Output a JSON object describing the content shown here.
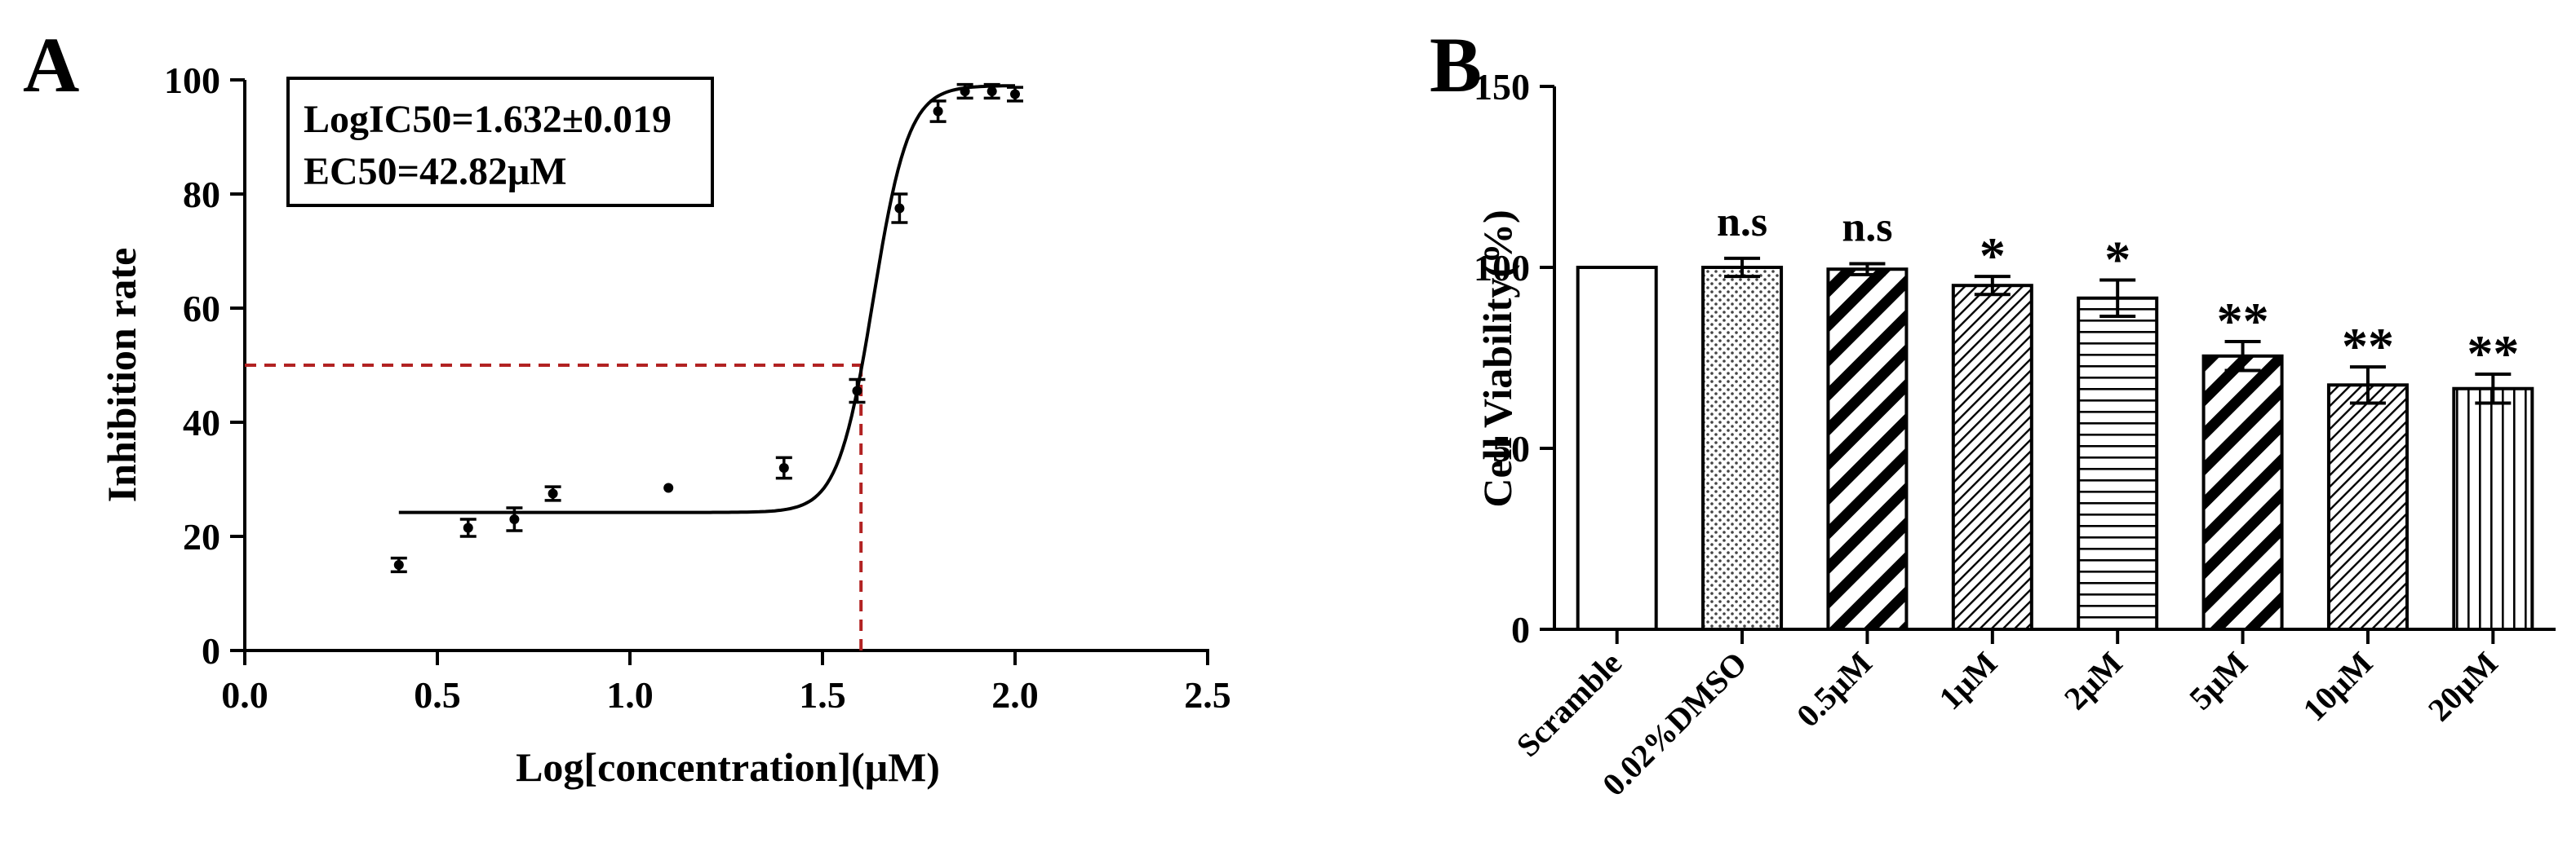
{
  "chart_data": [
    {
      "panel": "A",
      "type": "scatter",
      "title": "",
      "xlabel": "Log[concentration](μM)",
      "ylabel": "Inhibition rate",
      "xlim": [
        0,
        2.5
      ],
      "ylim": [
        0,
        100
      ],
      "xticks": [
        "0.0",
        "0.5",
        "1.0",
        "1.5",
        "2.0",
        "2.5"
      ],
      "yticks": [
        "0",
        "20",
        "40",
        "60",
        "80",
        "100"
      ],
      "points": [
        {
          "x": 0.4,
          "y": 15.0,
          "err": 1.2
        },
        {
          "x": 0.58,
          "y": 21.5,
          "err": 1.5
        },
        {
          "x": 0.7,
          "y": 23.0,
          "err": 2.0
        },
        {
          "x": 0.8,
          "y": 27.5,
          "err": 1.2
        },
        {
          "x": 1.1,
          "y": 28.5,
          "err": 0
        },
        {
          "x": 1.4,
          "y": 32.0,
          "err": 1.8
        },
        {
          "x": 1.59,
          "y": 45.5,
          "err": 2.0
        },
        {
          "x": 1.7,
          "y": 77.5,
          "err": 2.5
        },
        {
          "x": 1.8,
          "y": 94.5,
          "err": 1.8
        },
        {
          "x": 1.87,
          "y": 98.0,
          "err": 1.2
        },
        {
          "x": 1.94,
          "y": 98.0,
          "err": 1.2
        },
        {
          "x": 2.0,
          "y": 97.5,
          "err": 1.2
        }
      ],
      "fit": {
        "bottom": 24.2,
        "top": 99.0,
        "logIC50": 1.632,
        "hill": 9.5,
        "x_start": 0.4,
        "x_end": 2.0
      },
      "reference_lines": {
        "y": 50,
        "x": 1.6
      },
      "annotations": [
        "LogIC50=1.632±0.019",
        "EC50=42.82μM"
      ]
    },
    {
      "panel": "B",
      "type": "bar",
      "title": "",
      "xlabel": "",
      "ylabel": "Cell  Viability(%)",
      "ylim": [
        0,
        150
      ],
      "yticks": [
        "0",
        "50",
        "100",
        "150"
      ],
      "categories": [
        "Scramble",
        "0.02%DMSO",
        "0.5μM",
        "1μM",
        "2μM",
        "5μM",
        "10μM",
        "20μM"
      ],
      "values": [
        100,
        100,
        99.5,
        95,
        91.5,
        75.5,
        67.5,
        66.5
      ],
      "errors": [
        0,
        2.5,
        1.5,
        2.5,
        5,
        4,
        5,
        4
      ],
      "patterns": [
        "none",
        "dots",
        "diag-thick",
        "diag-thin",
        "horizontal",
        "diag-thick",
        "diag-thin",
        "vertical"
      ],
      "significance": [
        "",
        "n.s",
        "n.s",
        "*",
        "*",
        "**",
        "**",
        "**"
      ]
    }
  ],
  "colors": {
    "axis": "#000000",
    "fit_line": "#000000",
    "reference_line": "#b22222",
    "bar_fill": "#ffffff"
  }
}
